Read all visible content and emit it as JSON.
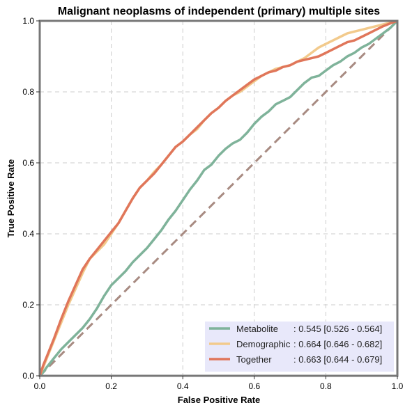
{
  "chart_data": {
    "type": "line",
    "title": "Malignant neoplasms of independent (primary) multiple sites",
    "xlabel": "False Positive Rate",
    "ylabel": "True Positive Rate",
    "xlim": [
      0,
      1
    ],
    "ylim": [
      0,
      1
    ],
    "xticks": [
      "0.0",
      "0.2",
      "0.4",
      "0.6",
      "0.8",
      "1.0"
    ],
    "yticks": [
      "0.0",
      "0.2",
      "0.4",
      "0.6",
      "0.8",
      "1.0"
    ],
    "grid": true,
    "legend_position": "bottom-right",
    "legend_background": "#e6e6fa",
    "series": [
      {
        "name": "Metabolite",
        "auc_label": ": 0.545 [0.526 - 0.564]",
        "color": "#7fb39a",
        "x": [
          0,
          0.01,
          0.02,
          0.04,
          0.06,
          0.08,
          0.1,
          0.12,
          0.14,
          0.16,
          0.18,
          0.2,
          0.22,
          0.24,
          0.26,
          0.28,
          0.3,
          0.32,
          0.34,
          0.36,
          0.38,
          0.4,
          0.42,
          0.44,
          0.46,
          0.48,
          0.5,
          0.52,
          0.54,
          0.56,
          0.58,
          0.6,
          0.62,
          0.64,
          0.66,
          0.68,
          0.7,
          0.72,
          0.74,
          0.76,
          0.78,
          0.8,
          0.82,
          0.84,
          0.86,
          0.88,
          0.9,
          0.92,
          0.94,
          0.96,
          0.98,
          1.0
        ],
        "y": [
          0,
          0.01,
          0.025,
          0.05,
          0.075,
          0.095,
          0.115,
          0.135,
          0.16,
          0.19,
          0.225,
          0.255,
          0.275,
          0.295,
          0.32,
          0.34,
          0.36,
          0.385,
          0.41,
          0.44,
          0.465,
          0.495,
          0.525,
          0.55,
          0.58,
          0.595,
          0.62,
          0.64,
          0.655,
          0.665,
          0.685,
          0.71,
          0.73,
          0.745,
          0.765,
          0.775,
          0.785,
          0.805,
          0.825,
          0.84,
          0.845,
          0.86,
          0.875,
          0.885,
          0.9,
          0.91,
          0.925,
          0.935,
          0.95,
          0.965,
          0.98,
          1.0
        ]
      },
      {
        "name": "Demographic",
        "auc_label": ": 0.664 [0.646 - 0.682]",
        "color": "#f2ca8c",
        "x": [
          0,
          0.01,
          0.02,
          0.04,
          0.06,
          0.08,
          0.1,
          0.12,
          0.14,
          0.16,
          0.18,
          0.2,
          0.22,
          0.24,
          0.26,
          0.28,
          0.3,
          0.32,
          0.34,
          0.36,
          0.38,
          0.4,
          0.42,
          0.44,
          0.46,
          0.48,
          0.5,
          0.52,
          0.54,
          0.56,
          0.58,
          0.6,
          0.62,
          0.64,
          0.66,
          0.68,
          0.7,
          0.72,
          0.74,
          0.76,
          0.78,
          0.8,
          0.82,
          0.84,
          0.86,
          0.88,
          0.9,
          0.92,
          0.94,
          0.96,
          0.98,
          1.0
        ],
        "y": [
          0,
          0.025,
          0.05,
          0.1,
          0.15,
          0.2,
          0.245,
          0.29,
          0.33,
          0.35,
          0.37,
          0.4,
          0.43,
          0.465,
          0.5,
          0.53,
          0.55,
          0.575,
          0.595,
          0.62,
          0.645,
          0.66,
          0.68,
          0.695,
          0.72,
          0.74,
          0.755,
          0.775,
          0.79,
          0.8,
          0.815,
          0.83,
          0.845,
          0.855,
          0.865,
          0.87,
          0.875,
          0.885,
          0.895,
          0.91,
          0.925,
          0.935,
          0.945,
          0.955,
          0.965,
          0.97,
          0.975,
          0.98,
          0.985,
          0.99,
          0.995,
          1.0
        ]
      },
      {
        "name": "Together",
        "auc_label": ": 0.663 [0.644 - 0.679]",
        "color": "#e0765a",
        "x": [
          0,
          0.01,
          0.02,
          0.04,
          0.06,
          0.08,
          0.1,
          0.12,
          0.14,
          0.16,
          0.18,
          0.2,
          0.22,
          0.24,
          0.26,
          0.28,
          0.3,
          0.32,
          0.34,
          0.36,
          0.38,
          0.4,
          0.42,
          0.44,
          0.46,
          0.48,
          0.5,
          0.52,
          0.54,
          0.56,
          0.58,
          0.6,
          0.62,
          0.64,
          0.66,
          0.68,
          0.7,
          0.72,
          0.74,
          0.76,
          0.78,
          0.8,
          0.82,
          0.84,
          0.86,
          0.88,
          0.9,
          0.92,
          0.94,
          0.96,
          0.98,
          1.0
        ],
        "y": [
          0,
          0.03,
          0.055,
          0.105,
          0.16,
          0.21,
          0.255,
          0.3,
          0.33,
          0.355,
          0.38,
          0.405,
          0.43,
          0.465,
          0.5,
          0.53,
          0.55,
          0.57,
          0.595,
          0.62,
          0.645,
          0.66,
          0.68,
          0.7,
          0.72,
          0.74,
          0.755,
          0.775,
          0.79,
          0.805,
          0.82,
          0.835,
          0.845,
          0.855,
          0.86,
          0.87,
          0.875,
          0.885,
          0.89,
          0.895,
          0.9,
          0.91,
          0.92,
          0.93,
          0.94,
          0.945,
          0.955,
          0.965,
          0.975,
          0.985,
          0.993,
          1.0
        ]
      }
    ],
    "reference_line": {
      "x": [
        0,
        1
      ],
      "y": [
        0,
        1
      ],
      "color": "#a88b82",
      "style": "dashed"
    }
  }
}
